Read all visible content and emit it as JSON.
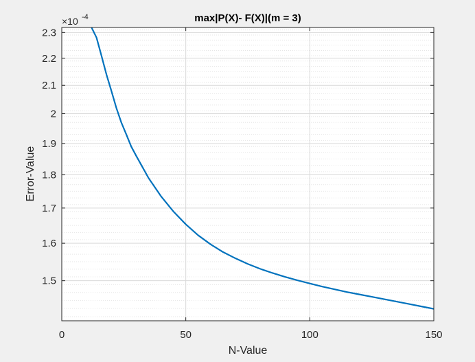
{
  "chart_data": {
    "type": "line",
    "title": "max|P(X)- F(X)|(m = 3)",
    "xlabel": "N-Value",
    "ylabel": "Error-Value",
    "y_exponent_base": "×10",
    "y_exponent_power": "-4",
    "xlim": [
      0,
      150
    ],
    "ylim": [
      1.4,
      2.32
    ],
    "yscale": "log",
    "grid": true,
    "minor_grid_y": true,
    "x_ticks": [
      0,
      50,
      100,
      150
    ],
    "x_tick_labels": [
      "0",
      "50",
      "100",
      "150"
    ],
    "y_ticks": [
      1.5,
      1.6,
      1.7,
      1.8,
      1.9,
      2.0,
      2.1,
      2.2,
      2.3
    ],
    "y_tick_labels": [
      "1.5",
      "1.6",
      "1.7",
      "1.8",
      "1.9",
      "2",
      "2.1",
      "2.2",
      "2.3"
    ],
    "colors": {
      "line": "#0072bd",
      "axes_bg": "#ffffff",
      "figure_bg": "#f0f0f0",
      "grid": "#d9d9d9"
    },
    "series": [
      {
        "x": [
          12,
          14,
          16,
          18,
          20,
          22,
          24,
          26,
          28,
          30,
          35,
          40,
          45,
          50,
          55,
          60,
          65,
          70,
          75,
          80,
          85,
          90,
          95,
          100,
          105,
          110,
          115,
          120,
          125,
          130,
          135,
          140,
          145,
          150
        ],
        "values": [
          2.32,
          2.28,
          2.21,
          2.14,
          2.08,
          2.02,
          1.97,
          1.93,
          1.89,
          1.86,
          1.79,
          1.735,
          1.69,
          1.653,
          1.622,
          1.597,
          1.576,
          1.559,
          1.544,
          1.531,
          1.52,
          1.51,
          1.501,
          1.493,
          1.485,
          1.478,
          1.471,
          1.465,
          1.459,
          1.453,
          1.447,
          1.441,
          1.435,
          1.429
        ]
      }
    ]
  }
}
